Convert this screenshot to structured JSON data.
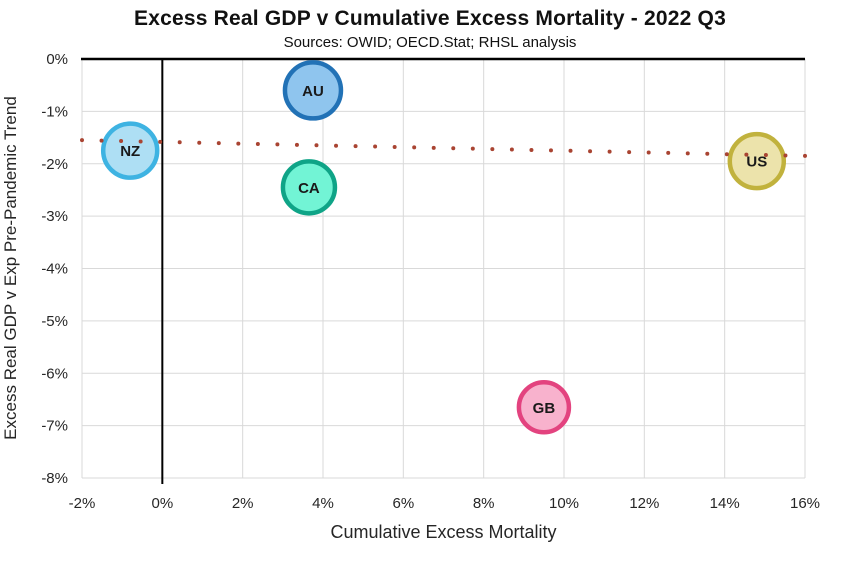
{
  "title": "Excess Real GDP v Cumulative Excess Mortality - 2022 Q3",
  "subtitle": "Sources: OWID; OECD.Stat; RHSL analysis",
  "chart_data": {
    "type": "scatter",
    "title": "Excess Real GDP v Cumulative Excess Mortality - 2022 Q3",
    "subtitle": "Sources: OWID; OECD.Stat; RHSL analysis",
    "xlabel": "Cumulative Excess Mortality",
    "ylabel": "Excess Real GDP v Exp Pre-Pandemic Trend",
    "xlim": [
      -2,
      16
    ],
    "ylim": [
      -8,
      0
    ],
    "x_tick_values": [
      -2,
      0,
      2,
      4,
      6,
      8,
      10,
      12,
      14,
      16
    ],
    "x_tick_labels": [
      "-2%",
      "0%",
      "2%",
      "4%",
      "6%",
      "8%",
      "10%",
      "12%",
      "14%",
      "16%"
    ],
    "y_tick_values": [
      0,
      -1,
      -2,
      -3,
      -4,
      -5,
      -6,
      -7,
      -8
    ],
    "y_tick_labels": [
      "0%",
      "-1%",
      "-2%",
      "-3%",
      "-4%",
      "-5%",
      "-6%",
      "-7%",
      "-8%"
    ],
    "grid": true,
    "legend": "none",
    "points": [
      {
        "label": "NZ",
        "x": -0.8,
        "y": -1.75,
        "r": 27,
        "fill": "#AEDFF4",
        "stroke": "#3EB3E2"
      },
      {
        "label": "AU",
        "x": 3.75,
        "y": -0.6,
        "r": 28,
        "fill": "#8FC5EE",
        "stroke": "#2272B6"
      },
      {
        "label": "CA",
        "x": 3.65,
        "y": -2.45,
        "r": 26,
        "fill": "#72F4D5",
        "stroke": "#0FA487"
      },
      {
        "label": "GB",
        "x": 9.5,
        "y": -6.65,
        "r": 25,
        "fill": "#F8B2CD",
        "stroke": "#E3437F"
      },
      {
        "label": "US",
        "x": 14.8,
        "y": -1.95,
        "r": 27,
        "fill": "#ECE3AB",
        "stroke": "#C1B23D"
      }
    ],
    "trendline": {
      "style": "dotted",
      "color": "#A94432",
      "x_start": -2,
      "y_start": -1.55,
      "x_end": 16,
      "y_end": -1.85,
      "dot_count": 38,
      "dot_radius": 2
    }
  },
  "colors": {
    "grid": "#D9D9D9",
    "zero_axis": "#000000",
    "tick_text": "#262626",
    "bubble_label": "#1a1a1a"
  }
}
